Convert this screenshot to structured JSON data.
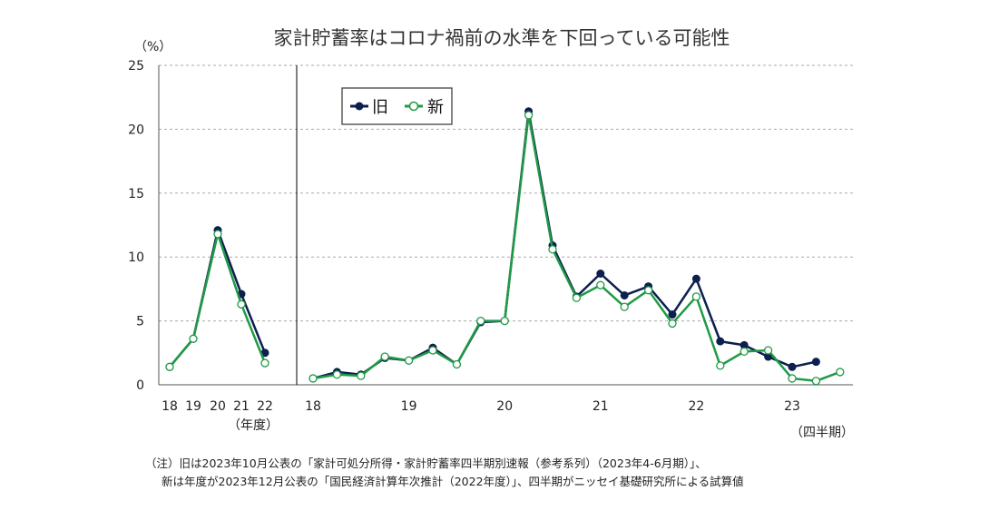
{
  "colors": {
    "old": "#0d1f4f",
    "new": "#1f9a45",
    "grid": "#aaaaaa",
    "axis": "#555555"
  },
  "chart_data": {
    "type": "line",
    "title": "家計貯蓄率はコロナ禍前の水準を下回っている可能性",
    "ylabel": "（%）",
    "ylim": [
      0,
      25
    ],
    "yticks": [
      0,
      5,
      10,
      15,
      20,
      25
    ],
    "grid": true,
    "legend": [
      "旧",
      "新"
    ],
    "legend_placement": "top-left",
    "annual": {
      "axis_label": "（年度）",
      "categories": [
        "18",
        "19",
        "20",
        "21",
        "22"
      ],
      "series": [
        {
          "name": "旧",
          "values": [
            1.4,
            3.6,
            12.1,
            7.1,
            2.5
          ]
        },
        {
          "name": "新",
          "values": [
            1.4,
            3.6,
            11.8,
            6.3,
            1.7
          ]
        }
      ]
    },
    "quarterly": {
      "axis_label": "（四半期）",
      "year_labels": [
        "18",
        "19",
        "20",
        "21",
        "22",
        "23"
      ],
      "categories": [
        "18-1",
        "18-2",
        "18-3",
        "18-4",
        "19-1",
        "19-2",
        "19-3",
        "19-4",
        "20-1",
        "20-2",
        "20-3",
        "20-4",
        "21-1",
        "21-2",
        "21-3",
        "21-4",
        "22-1",
        "22-2",
        "22-3",
        "22-4",
        "23-1",
        "23-2",
        "23-3"
      ],
      "series": [
        {
          "name": "旧",
          "values": [
            0.5,
            1.0,
            0.8,
            2.1,
            1.9,
            2.9,
            1.6,
            4.9,
            5.0,
            21.4,
            10.9,
            6.9,
            8.7,
            7.0,
            7.7,
            5.5,
            8.3,
            3.4,
            3.1,
            2.2,
            1.4,
            1.8,
            null
          ]
        },
        {
          "name": "新",
          "values": [
            0.5,
            0.8,
            0.7,
            2.2,
            1.9,
            2.7,
            1.6,
            5.0,
            5.0,
            21.1,
            10.6,
            6.8,
            7.8,
            6.1,
            7.4,
            4.8,
            6.9,
            1.5,
            2.6,
            2.7,
            0.5,
            0.3,
            1.0
          ]
        }
      ]
    }
  },
  "note": {
    "line1": "（注）旧は2023年10月公表の「家計可処分所得・家計貯蓄率四半期別速報（参考系列）（2023年4-6月期）」、",
    "line2": "新は年度が2023年12月公表の「国民経済計算年次推計（2022年度）」、四半期がニッセイ基礎研究所による試算値"
  }
}
